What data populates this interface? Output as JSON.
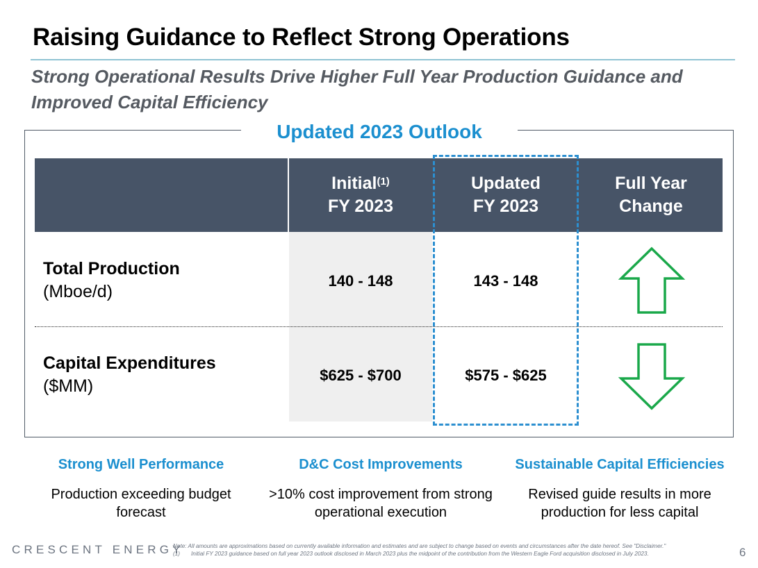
{
  "slide": {
    "title": "Raising Guidance to Reflect Strong Operations",
    "subtitle": "Strong Operational Results Drive Higher Full Year Production Guidance and Improved Capital Efficiency"
  },
  "outlook": {
    "title": "Updated 2023 Outlook",
    "headers": {
      "initial": "Initial",
      "initial_sup": "(1)",
      "initial_line2": "FY 2023",
      "updated": "Updated",
      "updated_line2": "FY 2023",
      "change": "Full Year",
      "change_line2": "Change"
    },
    "rows": [
      {
        "label": "Total Production",
        "unit": "(Mboe/d)",
        "initial": "140 - 148",
        "updated": "143 - 148",
        "change_icon": "up-arrow-icon"
      },
      {
        "label": "Capital Expenditures",
        "unit": "($MM)",
        "initial": "$625 - $700",
        "updated": "$575 - $625",
        "change_icon": "down-arrow-icon"
      }
    ],
    "colors": {
      "header_bg": "#475467",
      "accent_blue": "#1b8fcf",
      "arrow_green": "#1aa84a",
      "shade": "#efefef"
    }
  },
  "pillars": [
    {
      "title": "Strong Well Performance",
      "text": "Production exceeding budget forecast"
    },
    {
      "title": "D&C Cost Improvements",
      "text": ">10% cost improvement from strong operational execution"
    },
    {
      "title": "Sustainable Capital Efficiencies",
      "text": "Revised guide results in more production for less capital"
    }
  ],
  "footer": {
    "logo": "CRESCENT ENERGY",
    "note": "Note: All amounts are approximations based on currently available information and estimates and are subject to change based on events and circumstances after the date hereof. See \"Disclaimer.\"",
    "footnote_num": "(1)",
    "footnote_text": "Initial FY 2023 guidance based on full year 2023 outlook disclosed in March 2023 plus the midpoint of the contribution from the Western Eagle Ford acquisition disclosed in July 2023.",
    "page": "6"
  }
}
